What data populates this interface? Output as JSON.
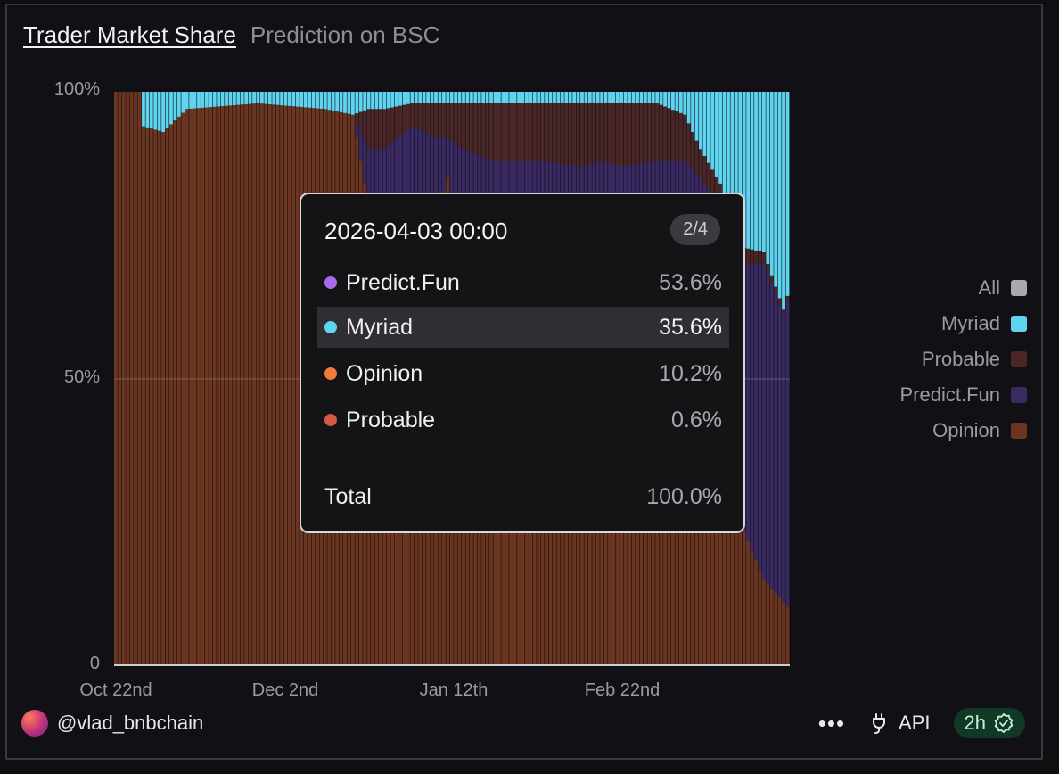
{
  "header": {
    "title": "Trader Market Share",
    "subtitle": "Prediction on BSC"
  },
  "axes": {
    "y_ticks": [
      "100%",
      "50%",
      "0"
    ],
    "x_ticks": [
      "Oct 22nd",
      "Dec 2nd",
      "Jan 12th",
      "Feb 22nd"
    ]
  },
  "legend": [
    {
      "label": "All",
      "color": "#a8a8ae"
    },
    {
      "label": "Myriad",
      "color": "#5fd4f0"
    },
    {
      "label": "Probable",
      "color": "#4a2626"
    },
    {
      "label": "Predict.Fun",
      "color": "#3a2a63"
    },
    {
      "label": "Opinion",
      "color": "#6b3520"
    }
  ],
  "tooltip": {
    "datetime": "2026-04-03 00:00",
    "page": "2/4",
    "rows": [
      {
        "name": "Predict.Fun",
        "value": "53.6%",
        "color": "#a66cf0"
      },
      {
        "name": "Myriad",
        "value": "35.6%",
        "color": "#5fd4f0"
      },
      {
        "name": "Opinion",
        "value": "10.2%",
        "color": "#f07a3a"
      },
      {
        "name": "Probable",
        "value": "0.6%",
        "color": "#d25a42"
      }
    ],
    "total_label": "Total",
    "total_value": "100.0%"
  },
  "footer": {
    "user": "@vlad_bnbchain",
    "api_label": "API",
    "freshness": "2h"
  },
  "chart_data": {
    "type": "bar",
    "stacked": true,
    "x_start": "2025-10-15",
    "x_end": "2026-04-03",
    "x_ticks": [
      "Oct 22nd",
      "Dec 2nd",
      "Jan 12th",
      "Feb 22nd"
    ],
    "ylim": [
      0,
      100
    ],
    "series_order_bottom_to_top": [
      "Opinion",
      "Predict.Fun",
      "Probable",
      "Myriad"
    ],
    "keyframes": [
      {
        "date": "2025-10-15",
        "Opinion": 100,
        "Predict.Fun": 0,
        "Probable": 0,
        "Myriad": 0
      },
      {
        "date": "2025-10-21",
        "Opinion": 100,
        "Predict.Fun": 0,
        "Probable": 0,
        "Myriad": 0
      },
      {
        "date": "2025-10-22",
        "Opinion": 94,
        "Predict.Fun": 0,
        "Probable": 0,
        "Myriad": 6
      },
      {
        "date": "2025-10-27",
        "Opinion": 93,
        "Predict.Fun": 0,
        "Probable": 0,
        "Myriad": 7
      },
      {
        "date": "2025-11-02",
        "Opinion": 97,
        "Predict.Fun": 0,
        "Probable": 0,
        "Myriad": 3
      },
      {
        "date": "2025-11-20",
        "Opinion": 98,
        "Predict.Fun": 0,
        "Probable": 0,
        "Myriad": 2
      },
      {
        "date": "2025-12-07",
        "Opinion": 97,
        "Predict.Fun": 0,
        "Probable": 0,
        "Myriad": 3
      },
      {
        "date": "2025-12-14",
        "Opinion": 96,
        "Predict.Fun": 0,
        "Probable": 0,
        "Myriad": 4
      },
      {
        "date": "2025-12-18",
        "Opinion": 80,
        "Predict.Fun": 10,
        "Probable": 7,
        "Myriad": 3
      },
      {
        "date": "2025-12-22",
        "Opinion": 68,
        "Predict.Fun": 22,
        "Probable": 7,
        "Myriad": 3
      },
      {
        "date": "2025-12-29",
        "Opinion": 62,
        "Predict.Fun": 32,
        "Probable": 4,
        "Myriad": 2
      },
      {
        "date": "2026-01-04",
        "Opinion": 78,
        "Predict.Fun": 14,
        "Probable": 6,
        "Myriad": 2
      },
      {
        "date": "2026-01-07",
        "Opinion": 85,
        "Predict.Fun": 7,
        "Probable": 6,
        "Myriad": 2
      },
      {
        "date": "2026-01-11",
        "Opinion": 60,
        "Predict.Fun": 30,
        "Probable": 8,
        "Myriad": 2
      },
      {
        "date": "2026-01-18",
        "Opinion": 70,
        "Predict.Fun": 18,
        "Probable": 10,
        "Myriad": 2
      },
      {
        "date": "2026-01-30",
        "Opinion": 80,
        "Predict.Fun": 8,
        "Probable": 10,
        "Myriad": 2
      },
      {
        "date": "2026-02-10",
        "Opinion": 75,
        "Predict.Fun": 12,
        "Probable": 11,
        "Myriad": 2
      },
      {
        "date": "2026-02-15",
        "Opinion": 68,
        "Predict.Fun": 20,
        "Probable": 10,
        "Myriad": 2
      },
      {
        "date": "2026-02-20",
        "Opinion": 75,
        "Predict.Fun": 12,
        "Probable": 11,
        "Myriad": 2
      },
      {
        "date": "2026-03-01",
        "Opinion": 78,
        "Predict.Fun": 10,
        "Probable": 10,
        "Myriad": 2
      },
      {
        "date": "2026-03-08",
        "Opinion": 60,
        "Predict.Fun": 28,
        "Probable": 8,
        "Myriad": 4
      },
      {
        "date": "2026-03-12",
        "Opinion": 45,
        "Predict.Fun": 40,
        "Probable": 5,
        "Myriad": 10
      },
      {
        "date": "2026-03-17",
        "Opinion": 30,
        "Predict.Fun": 50,
        "Probable": 4,
        "Myriad": 16
      },
      {
        "date": "2026-03-22",
        "Opinion": 25,
        "Predict.Fun": 45,
        "Probable": 3,
        "Myriad": 27
      },
      {
        "date": "2026-03-28",
        "Opinion": 15,
        "Predict.Fun": 55,
        "Probable": 2,
        "Myriad": 28
      },
      {
        "date": "2026-04-02",
        "Opinion": 11,
        "Predict.Fun": 50,
        "Probable": 1,
        "Myriad": 38
      },
      {
        "date": "2026-04-03",
        "Opinion": 10.2,
        "Predict.Fun": 53.6,
        "Probable": 0.6,
        "Myriad": 35.6
      }
    ],
    "colors": {
      "Opinion": "#6b3520",
      "Predict.Fun": "#3a2a63",
      "Probable": "#4a2626",
      "Myriad": "#5fd4f0"
    }
  }
}
